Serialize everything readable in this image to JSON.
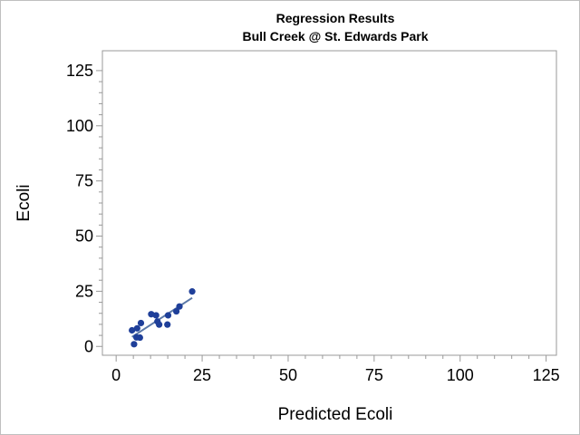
{
  "chart_data": {
    "type": "scatter",
    "title": "Regression Results",
    "subtitle": "Bull Creek @ St. Edwards Park",
    "xlabel": "Predicted Ecoli",
    "ylabel": "Ecoli",
    "xlim": [
      -4,
      128
    ],
    "ylim": [
      -4,
      134
    ],
    "x_ticks": [
      0,
      25,
      50,
      75,
      100,
      125
    ],
    "y_ticks": [
      0,
      25,
      50,
      75,
      100,
      125
    ],
    "x_tick_labels": [
      "0",
      "25",
      "50",
      "75",
      "100",
      "125"
    ],
    "y_tick_labels": [
      "0",
      "25",
      "50",
      "75",
      "100",
      "125"
    ],
    "grid": false,
    "legend": "none",
    "colors": {
      "points": "#1f3f99",
      "fit_line": "#5b79a8",
      "axis": "#999999",
      "frame": "#bfbfbf"
    },
    "points": [
      {
        "x": 4.6,
        "y": 7.3
      },
      {
        "x": 5.2,
        "y": 1.0
      },
      {
        "x": 5.9,
        "y": 4.1
      },
      {
        "x": 6.1,
        "y": 8.2
      },
      {
        "x": 6.9,
        "y": 4.0
      },
      {
        "x": 7.2,
        "y": 10.6
      },
      {
        "x": 10.2,
        "y": 14.6
      },
      {
        "x": 11.6,
        "y": 14.1
      },
      {
        "x": 12.0,
        "y": 11.3
      },
      {
        "x": 12.5,
        "y": 9.9
      },
      {
        "x": 14.9,
        "y": 9.9
      },
      {
        "x": 15.1,
        "y": 14.1
      },
      {
        "x": 17.5,
        "y": 15.9
      },
      {
        "x": 18.4,
        "y": 18.1
      },
      {
        "x": 22.1,
        "y": 24.9
      }
    ],
    "fit_line": [
      {
        "x": 4.6,
        "y": 4.3
      },
      {
        "x": 22.1,
        "y": 22.0
      }
    ]
  }
}
